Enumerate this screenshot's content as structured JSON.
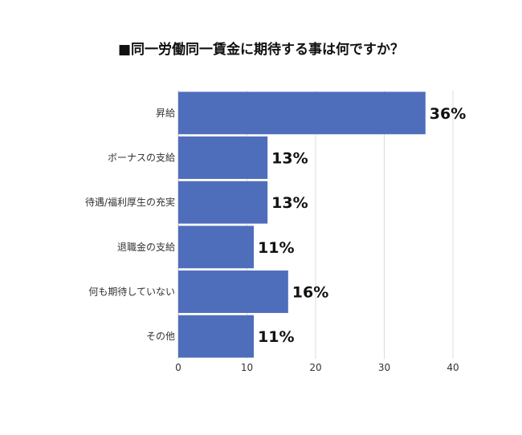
{
  "chart_data": {
    "type": "bar",
    "orientation": "horizontal",
    "title": "■同一労働同一賃金に期待する事は何ですか？",
    "categories": [
      "昇給",
      "ボーナスの支給",
      "待遇/福利厚生の充実",
      "退職金の支給",
      "何も期待していない",
      "その他"
    ],
    "values": [
      36,
      13,
      13,
      11,
      16,
      11
    ],
    "data_labels": [
      "36%",
      "13%",
      "13%",
      "11%",
      "16%",
      "11%"
    ],
    "xlim": [
      0,
      40
    ],
    "xticks": [
      0,
      10,
      20,
      30,
      40
    ],
    "xlabel": "",
    "ylabel": "",
    "grid": true,
    "bar_color": "#4e6dbb",
    "grid_color": "#dcdcdc"
  }
}
